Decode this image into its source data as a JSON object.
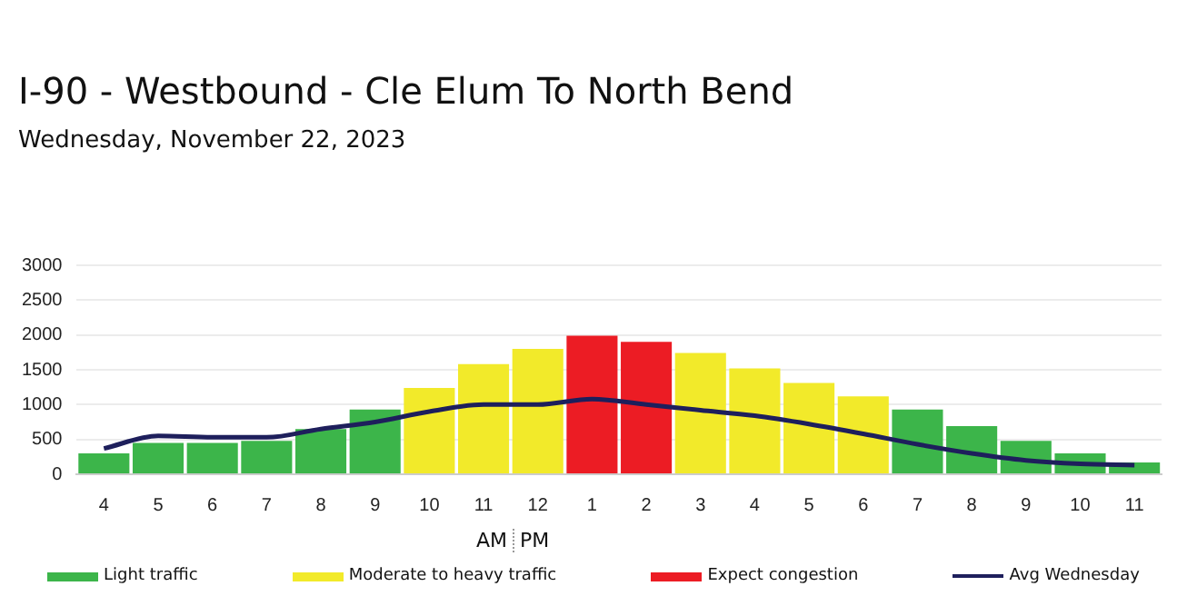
{
  "chart_data": {
    "type": "bar",
    "title": "I-90 - Westbound - Cle Elum To North Bend",
    "subtitle": "Wednesday, November 22, 2023",
    "categories": [
      "4",
      "5",
      "6",
      "7",
      "8",
      "9",
      "10",
      "11",
      "12",
      "1",
      "2",
      "3",
      "4",
      "5",
      "6",
      "7",
      "8",
      "9",
      "10",
      "11"
    ],
    "stacked": true,
    "series": [
      {
        "name": "Light traffic",
        "color": "#3cb54a",
        "values": [
          300,
          450,
          450,
          480,
          650,
          930,
          null,
          null,
          null,
          null,
          null,
          null,
          null,
          null,
          null,
          930,
          690,
          480,
          300,
          170
        ]
      },
      {
        "name": "Moderate to heavy traffic",
        "color": "#f2ea2a",
        "values": [
          null,
          null,
          null,
          null,
          null,
          null,
          1240,
          1580,
          1800,
          null,
          null,
          1740,
          1520,
          1310,
          1120,
          null,
          null,
          null,
          null,
          null
        ]
      },
      {
        "name": "Expect congestion",
        "color": "#ec1c24",
        "values": [
          null,
          null,
          null,
          null,
          null,
          null,
          null,
          null,
          null,
          1990,
          1900,
          null,
          null,
          null,
          null,
          null,
          null,
          null,
          null,
          null
        ]
      },
      {
        "name": "Avg Wednesday",
        "type": "line",
        "color": "#1e1f5c",
        "values": [
          370,
          550,
          530,
          530,
          650,
          750,
          900,
          1000,
          1000,
          1080,
          1000,
          920,
          840,
          720,
          580,
          430,
          300,
          200,
          150,
          130
        ]
      }
    ],
    "ylim": [
      0,
      3000
    ],
    "yticks": [
      0,
      500,
      1000,
      1500,
      2000,
      2500,
      3000
    ],
    "grid": "y",
    "legend": "bottom",
    "marker": "none",
    "annotations": [
      "AM",
      "PM"
    ]
  }
}
